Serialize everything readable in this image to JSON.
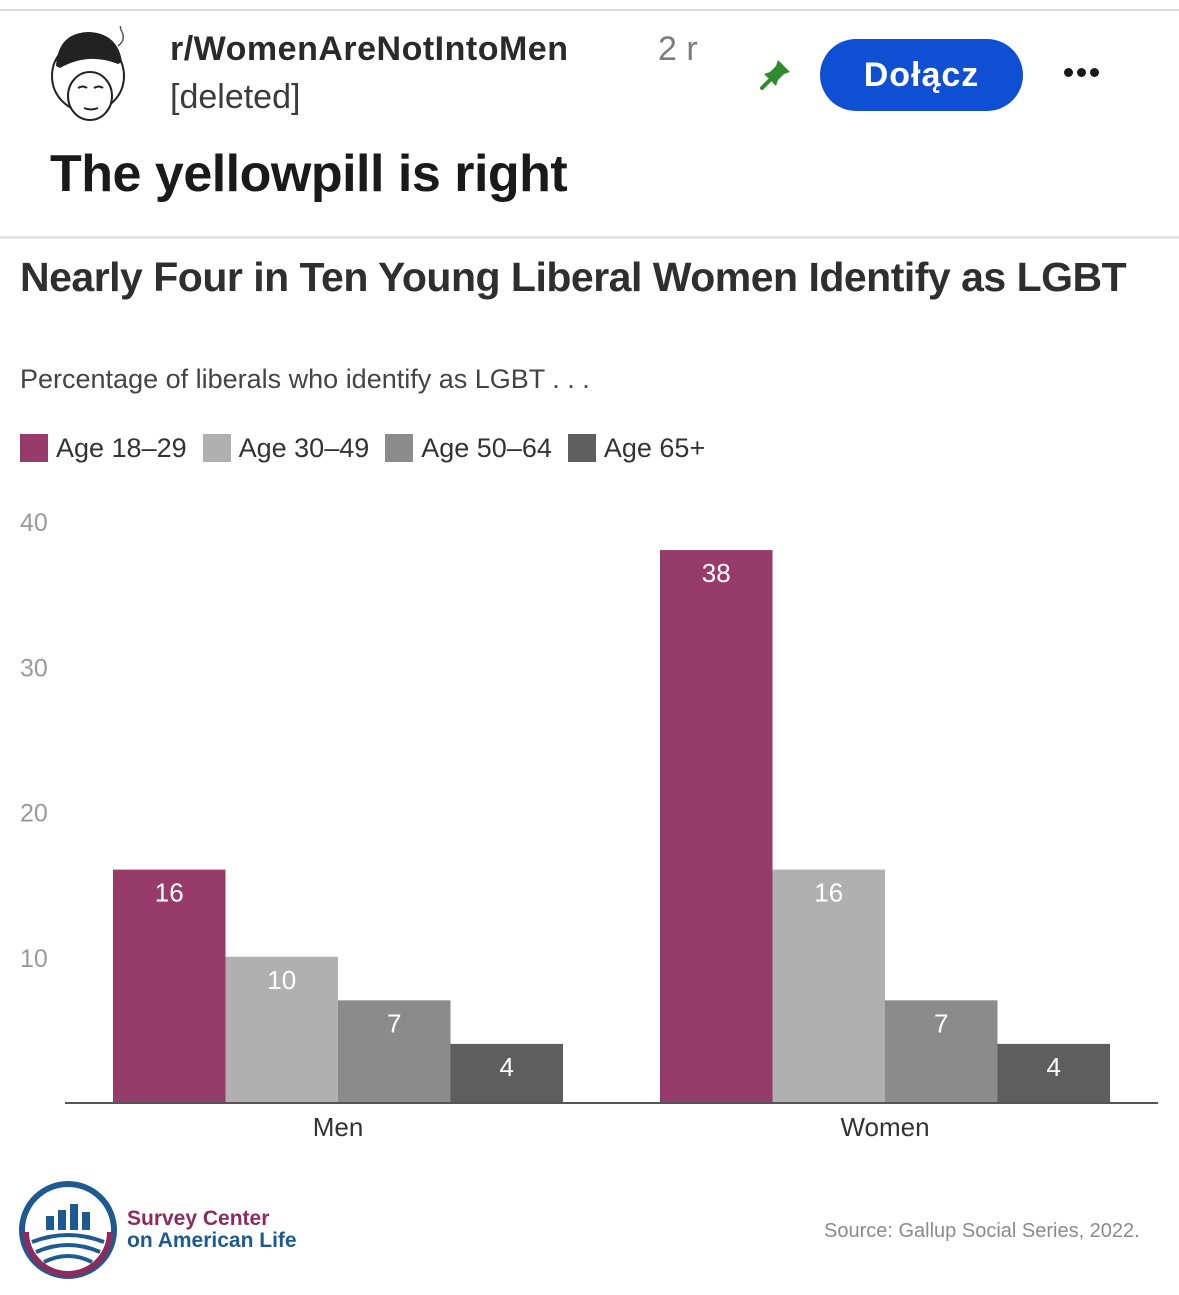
{
  "post": {
    "subreddit": "r/WomenAreNotIntoMen",
    "age": "2 r",
    "author": "[deleted]",
    "join_label": "Dołącz",
    "title": "The yellowpill is right"
  },
  "colors": {
    "join": "#0f4fd4",
    "pin": "#2e8b2e",
    "accent": "#9b3d6c"
  },
  "chart_data": {
    "type": "bar",
    "title": "Nearly Four in Ten Young Liberal Women Identify as LGBT",
    "subtitle": "Percentage of liberals who identify as LGBT . . .",
    "categories": [
      "Men",
      "Women"
    ],
    "series": [
      {
        "name": "Age 18–29",
        "values": [
          16,
          38
        ],
        "color": "#973c6a"
      },
      {
        "name": "Age 30–49",
        "values": [
          10,
          16
        ],
        "color": "#b0b0b0"
      },
      {
        "name": "Age 50–64",
        "values": [
          7,
          7
        ],
        "color": "#8b8b8b"
      },
      {
        "name": "Age 65+",
        "values": [
          4,
          4
        ],
        "color": "#5e5e5e"
      }
    ],
    "yticks": [
      10,
      20,
      30,
      40
    ],
    "ylim": [
      0,
      40
    ],
    "xlabel": "",
    "ylabel": "",
    "source": "Source: Gallup Social Series, 2022.",
    "org_line1": "Survey Center",
    "org_line2": "on American Life"
  }
}
